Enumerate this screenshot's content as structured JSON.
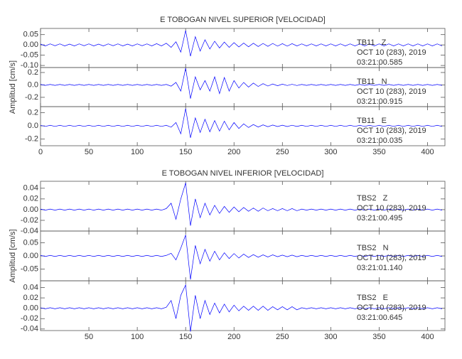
{
  "chart_data": [
    {
      "type": "line",
      "title": "E TOBOGAN NIVEL SUPERIOR [VELOCIDAD]",
      "y_label": "Amplitud [cm/s]",
      "xlim": [
        0,
        418
      ],
      "xticks": [
        0,
        50,
        100,
        150,
        200,
        250,
        300,
        350,
        400
      ],
      "x": [
        0,
        5,
        10,
        15,
        20,
        25,
        30,
        35,
        40,
        45,
        50,
        55,
        60,
        65,
        70,
        75,
        80,
        85,
        90,
        95,
        100,
        105,
        110,
        115,
        120,
        125,
        130,
        135,
        140,
        145,
        150,
        155,
        160,
        165,
        170,
        175,
        180,
        185,
        190,
        195,
        200,
        205,
        210,
        215,
        220,
        225,
        230,
        235,
        240,
        245,
        250,
        255,
        260,
        265,
        270,
        275,
        280,
        285,
        290,
        295,
        300,
        305,
        310,
        315,
        320,
        325,
        330,
        335,
        340,
        345,
        350,
        355,
        360,
        365,
        370,
        375,
        380,
        385,
        390,
        395,
        400,
        405,
        410,
        415
      ],
      "series": [
        {
          "name": "TB11   Z",
          "date": "OCT 10 (283), 2019",
          "time": "03:21:00.585",
          "color": "#0000ff",
          "ylim": [
            -0.11,
            0.08
          ],
          "yticks": [
            {
              "value": 0.05,
              "label": "0.05"
            },
            {
              "value": 0,
              "label": "0.00"
            },
            {
              "value": -0.05,
              "label": "-0.05"
            },
            {
              "value": -0.1,
              "label": "-0.10"
            }
          ],
          "values": [
            0.004,
            -0.005,
            0.005,
            -0.004,
            0.005,
            -0.005,
            0.004,
            -0.005,
            0.005,
            -0.004,
            0.005,
            -0.005,
            0.004,
            -0.005,
            0.005,
            -0.004,
            0.005,
            -0.005,
            0.004,
            -0.005,
            0.005,
            -0.004,
            0.005,
            -0.005,
            0.006,
            -0.005,
            0.008,
            -0.012,
            0.015,
            -0.035,
            0.07,
            -0.055,
            0.04,
            -0.03,
            0.025,
            -0.02,
            0.018,
            -0.015,
            0.014,
            -0.012,
            0.011,
            -0.01,
            0.009,
            -0.009,
            0.008,
            -0.008,
            0.007,
            -0.007,
            0.007,
            -0.006,
            0.006,
            -0.006,
            0.006,
            -0.005,
            0.005,
            -0.005,
            0.005,
            -0.005,
            0.005,
            -0.005,
            0.005,
            -0.005,
            0.005,
            -0.005,
            0.005,
            -0.005,
            0.005,
            -0.005,
            0.005,
            -0.005,
            0.005,
            -0.005,
            0.005,
            -0.005,
            0.005,
            -0.005,
            0.005,
            -0.005,
            0.005,
            -0.005,
            0.005,
            -0.005,
            0.005,
            -0.005
          ]
        },
        {
          "name": "TB11   N",
          "date": "OCT 10 (283), 2019",
          "time": "03:21:00.915",
          "color": "#0000ff",
          "ylim": [
            -0.35,
            0.28
          ],
          "yticks": [
            {
              "value": 0.2,
              "label": "0.2"
            },
            {
              "value": 0,
              "label": "0.0"
            },
            {
              "value": -0.2,
              "label": "-0.2"
            }
          ],
          "values": [
            0.008,
            -0.008,
            0.008,
            -0.008,
            0.008,
            -0.008,
            0.008,
            -0.008,
            0.008,
            -0.008,
            0.008,
            -0.008,
            0.008,
            -0.008,
            0.008,
            -0.008,
            0.008,
            -0.008,
            0.008,
            -0.008,
            0.008,
            -0.008,
            0.008,
            -0.008,
            0.008,
            -0.008,
            0.008,
            -0.02,
            0.04,
            -0.1,
            0.27,
            -0.22,
            0.13,
            -0.08,
            0.07,
            -0.1,
            0.13,
            -0.14,
            0.12,
            -0.1,
            0.07,
            -0.05,
            0.04,
            -0.035,
            0.03,
            -0.025,
            0.02,
            -0.018,
            0.015,
            -0.013,
            0.012,
            -0.01,
            0.01,
            -0.01,
            0.008,
            -0.008,
            0.008,
            -0.008,
            0.008,
            -0.008,
            0.008,
            -0.008,
            0.008,
            -0.008,
            0.008,
            -0.008,
            0.008,
            -0.008,
            0.008,
            -0.008,
            0.008,
            -0.008,
            0.008,
            -0.008,
            0.008,
            -0.008,
            0.008,
            -0.008,
            0.008,
            -0.008,
            0.008,
            -0.008,
            0.008,
            -0.008
          ]
        },
        {
          "name": "TB11   E",
          "date": "OCT 10 (283), 2019",
          "time": "03:21:00.035",
          "color": "#0000ff",
          "ylim": [
            -0.3,
            0.29
          ],
          "yticks": [
            {
              "value": 0.2,
              "label": "0.2"
            },
            {
              "value": 0,
              "label": "0.0"
            },
            {
              "value": -0.2,
              "label": "-0.2"
            }
          ],
          "values": [
            0.008,
            -0.008,
            0.008,
            -0.008,
            0.008,
            -0.008,
            0.008,
            -0.008,
            0.008,
            -0.008,
            0.008,
            -0.008,
            0.008,
            -0.008,
            0.008,
            -0.008,
            0.008,
            -0.008,
            0.008,
            -0.008,
            0.008,
            -0.008,
            0.008,
            -0.008,
            0.008,
            -0.008,
            0.008,
            -0.02,
            0.05,
            -0.12,
            0.26,
            -0.18,
            0.12,
            -0.1,
            0.1,
            -0.09,
            0.08,
            -0.08,
            0.07,
            -0.06,
            0.05,
            -0.04,
            0.03,
            -0.025,
            0.02,
            -0.018,
            0.015,
            -0.013,
            0.012,
            -0.01,
            0.01,
            -0.01,
            0.009,
            -0.009,
            0.008,
            -0.008,
            0.008,
            -0.008,
            0.008,
            -0.008,
            0.008,
            -0.008,
            0.008,
            -0.008,
            0.008,
            -0.008,
            0.008,
            -0.008,
            0.008,
            -0.008,
            0.008,
            -0.008,
            0.008,
            -0.008,
            0.008,
            -0.008,
            0.008,
            -0.008,
            0.008,
            -0.008,
            0.008,
            -0.008,
            0.008,
            -0.008
          ]
        }
      ]
    },
    {
      "type": "line",
      "title": "E TOBOGAN NIVEL INFERIOR [VELOCIDAD]",
      "y_label": "Amplitud [cm/s]",
      "xlim": [
        0,
        418
      ],
      "xticks": [
        50,
        100,
        150,
        200,
        250,
        300,
        350,
        400
      ],
      "x": [
        0,
        5,
        10,
        15,
        20,
        25,
        30,
        35,
        40,
        45,
        50,
        55,
        60,
        65,
        70,
        75,
        80,
        85,
        90,
        95,
        100,
        105,
        110,
        115,
        120,
        125,
        130,
        135,
        140,
        145,
        150,
        155,
        160,
        165,
        170,
        175,
        180,
        185,
        190,
        195,
        200,
        205,
        210,
        215,
        220,
        225,
        230,
        235,
        240,
        245,
        250,
        255,
        260,
        265,
        270,
        275,
        280,
        285,
        290,
        295,
        300,
        305,
        310,
        315,
        320,
        325,
        330,
        335,
        340,
        345,
        350,
        355,
        360,
        365,
        370,
        375,
        380,
        385,
        390,
        395,
        400,
        405,
        410,
        415
      ],
      "series": [
        {
          "name": "TBS2   Z",
          "date": "OCT 10 (283), 2019",
          "time": "03:21:00.495",
          "color": "#0000ff",
          "ylim": [
            -0.04,
            0.053
          ],
          "yticks": [
            {
              "value": 0.04,
              "label": "0.04"
            },
            {
              "value": 0.02,
              "label": "0.02"
            },
            {
              "value": 0,
              "label": "0.00"
            },
            {
              "value": -0.02,
              "label": "-0.02"
            },
            {
              "value": -0.04,
              "label": "-0.04"
            }
          ],
          "values": [
            0.001,
            -0.001,
            0.001,
            -0.001,
            0.001,
            -0.001,
            0.001,
            -0.001,
            0.001,
            -0.001,
            0.001,
            -0.001,
            0.001,
            -0.001,
            0.001,
            -0.001,
            0.001,
            -0.001,
            0.001,
            -0.001,
            0.001,
            -0.001,
            0.001,
            -0.001,
            0.001,
            -0.001,
            0.002,
            0.012,
            -0.018,
            0.02,
            0.05,
            -0.03,
            0.02,
            -0.015,
            0.012,
            -0.01,
            0.008,
            -0.007,
            0.006,
            -0.005,
            0.005,
            -0.004,
            0.004,
            -0.003,
            0.003,
            -0.003,
            0.003,
            -0.002,
            0.002,
            -0.002,
            0.002,
            -0.002,
            0.002,
            -0.002,
            0.001,
            -0.001,
            0.001,
            -0.001,
            0.001,
            -0.001,
            0.001,
            -0.001,
            0.001,
            -0.001,
            0.001,
            -0.001,
            0.001,
            -0.001,
            0.001,
            -0.001,
            0.001,
            -0.001,
            0.001,
            -0.001,
            0.001,
            -0.001,
            0.001,
            -0.001,
            0.001,
            -0.001,
            0.001,
            -0.001,
            0.001,
            -0.001
          ]
        },
        {
          "name": "TBS2   N",
          "date": "OCT 10 (283), 2019",
          "time": "03:21:01.140",
          "color": "#0000ff",
          "ylim": [
            -0.095,
            0.095
          ],
          "yticks": [
            {
              "value": 0.05,
              "label": "0.05"
            },
            {
              "value": 0,
              "label": "0.00"
            },
            {
              "value": -0.05,
              "label": "-0.05"
            }
          ],
          "values": [
            0.002,
            -0.002,
            0.002,
            -0.002,
            0.002,
            -0.002,
            0.002,
            -0.002,
            0.002,
            -0.002,
            0.002,
            -0.002,
            0.002,
            -0.002,
            0.002,
            -0.002,
            0.002,
            -0.002,
            0.002,
            -0.002,
            0.002,
            -0.002,
            0.002,
            -0.002,
            0.002,
            -0.002,
            0.002,
            0.01,
            -0.015,
            0.03,
            0.08,
            -0.09,
            0.04,
            -0.03,
            0.025,
            -0.02,
            0.018,
            -0.015,
            0.012,
            -0.01,
            0.009,
            -0.008,
            0.007,
            -0.006,
            0.005,
            -0.005,
            0.004,
            -0.004,
            0.004,
            -0.003,
            0.003,
            -0.003,
            0.003,
            -0.003,
            0.002,
            -0.002,
            0.002,
            -0.002,
            0.002,
            -0.002,
            0.002,
            -0.002,
            0.002,
            -0.002,
            0.002,
            -0.002,
            0.002,
            -0.002,
            0.002,
            -0.002,
            0.002,
            -0.002,
            0.002,
            -0.002,
            0.002,
            -0.002,
            0.002,
            -0.002,
            0.002,
            -0.002,
            0.002,
            -0.002,
            0.002,
            -0.002
          ]
        },
        {
          "name": "TBS2   E",
          "date": "OCT 10 (283), 2019",
          "time": "03:21:00.645",
          "color": "#0000ff",
          "ylim": [
            -0.043,
            0.053
          ],
          "yticks": [
            {
              "value": 0.04,
              "label": "0.04"
            },
            {
              "value": 0.02,
              "label": "0.02"
            },
            {
              "value": 0,
              "label": "0.00"
            },
            {
              "value": -0.02,
              "label": "-0.02"
            },
            {
              "value": -0.04,
              "label": "-0.04"
            }
          ],
          "values": [
            0.001,
            -0.001,
            0.001,
            -0.001,
            0.001,
            -0.001,
            0.001,
            -0.001,
            0.001,
            -0.001,
            0.001,
            -0.001,
            0.001,
            -0.001,
            0.001,
            -0.001,
            0.001,
            -0.001,
            0.001,
            -0.001,
            0.001,
            -0.001,
            0.001,
            -0.001,
            0.001,
            -0.001,
            0.002,
            0.015,
            -0.02,
            0.025,
            0.045,
            -0.045,
            0.025,
            -0.02,
            0.015,
            -0.012,
            0.01,
            -0.009,
            0.008,
            -0.007,
            0.006,
            -0.005,
            0.004,
            -0.004,
            0.004,
            -0.004,
            0.004,
            -0.004,
            0.003,
            -0.003,
            0.003,
            -0.003,
            0.003,
            -0.003,
            0.001,
            -0.001,
            0.001,
            -0.001,
            0.001,
            -0.001,
            0.001,
            -0.001,
            0.001,
            -0.001,
            0.001,
            -0.001,
            0.001,
            -0.001,
            0.001,
            -0.001,
            0.001,
            -0.001,
            0.001,
            -0.001,
            0.001,
            -0.001,
            0.001,
            -0.001,
            0.001,
            -0.001,
            0.001,
            -0.001,
            0.001,
            -0.001
          ]
        }
      ]
    }
  ]
}
